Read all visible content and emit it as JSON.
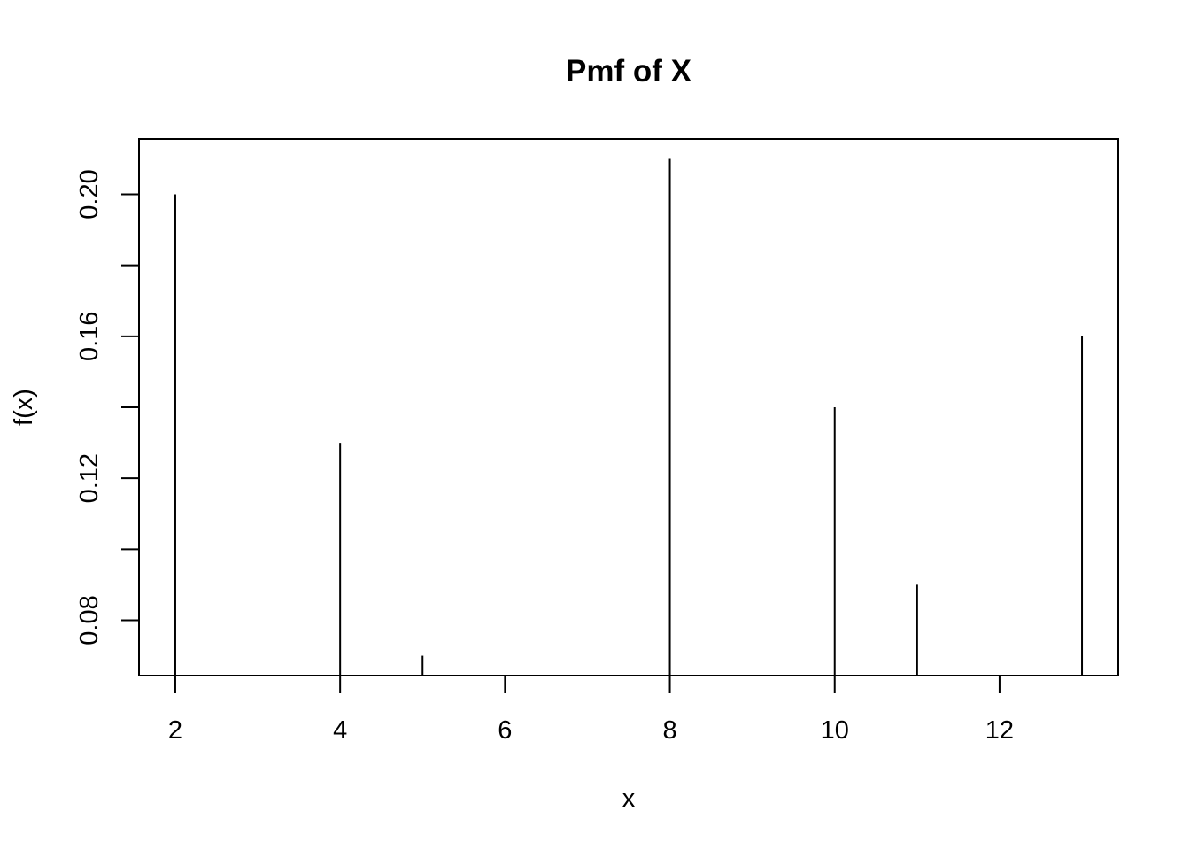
{
  "chart_data": {
    "type": "bar",
    "style": "spikes",
    "title": "Pmf of X",
    "xlabel": "x",
    "ylabel": "f(x)",
    "x": [
      2,
      4,
      5,
      8,
      10,
      11,
      13
    ],
    "values": [
      0.2,
      0.13,
      0.07,
      0.21,
      0.14,
      0.09,
      0.16
    ],
    "xlim": [
      1.56,
      13.44
    ],
    "ylim": [
      0.0644,
      0.2156
    ],
    "xticks": [
      2,
      4,
      6,
      8,
      10,
      12
    ],
    "xtick_labels": [
      "2",
      "4",
      "6",
      "8",
      "10",
      "12"
    ],
    "yticks": [
      0.08,
      0.1,
      0.12,
      0.14,
      0.16,
      0.18,
      0.2
    ],
    "ytick_labels": [
      "0.08",
      "",
      "0.12",
      "",
      "0.16",
      "",
      "0.20"
    ],
    "grid": false,
    "legend": "none"
  }
}
